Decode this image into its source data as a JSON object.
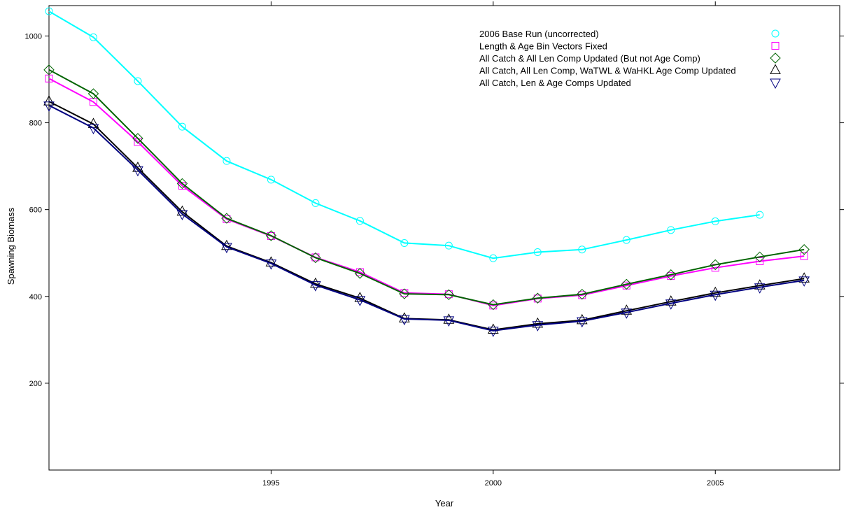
{
  "chart_data": {
    "type": "line",
    "title": "",
    "xlabel": "Year",
    "ylabel": "Spawning Biomass",
    "xlim": [
      1990,
      2007.8
    ],
    "ylim": [
      0,
      1070
    ],
    "x_ticks": [
      1995,
      2000,
      2005
    ],
    "y_ticks": [
      200,
      400,
      600,
      800,
      1000
    ],
    "grid": false,
    "legend_position": "top-right",
    "series": [
      {
        "name": "2006 Base Run (uncorrected)",
        "color": "#00ffff",
        "marker": "circle",
        "x": [
          1990,
          1991,
          1992,
          1993,
          1994,
          1995,
          1996,
          1997,
          1998,
          1999,
          2000,
          2001,
          2002,
          2003,
          2004,
          2005,
          2006
        ],
        "values": [
          1057,
          997,
          896,
          791,
          712,
          669,
          615,
          574,
          523,
          517,
          488,
          502,
          508,
          530,
          553,
          573,
          588
        ]
      },
      {
        "name": "Length & Age Bin Vectors Fixed",
        "color": "#ff00ff",
        "marker": "square",
        "x": [
          1990,
          1991,
          1992,
          1993,
          1994,
          1995,
          1996,
          1997,
          1998,
          1999,
          2000,
          2001,
          2002,
          2003,
          2004,
          2005,
          2006,
          2007
        ],
        "values": [
          902,
          848,
          756,
          655,
          578,
          539,
          490,
          456,
          408,
          405,
          379,
          395,
          403,
          425,
          447,
          466,
          481,
          493
        ]
      },
      {
        "name": "All Catch & All Len Comp Updated (But not Age Comp)",
        "color": "#006400",
        "marker": "diamond",
        "x": [
          1990,
          1991,
          1992,
          1993,
          1994,
          1995,
          1996,
          1997,
          1998,
          1999,
          2000,
          2001,
          2002,
          2003,
          2004,
          2005,
          2006,
          2007
        ],
        "values": [
          922,
          867,
          764,
          660,
          580,
          540,
          489,
          453,
          406,
          404,
          381,
          396,
          405,
          428,
          450,
          473,
          491,
          508
        ]
      },
      {
        "name": "All Catch, All Len Comp, WaTWL & WaHKL Age Comp Updated",
        "color": "#000000",
        "marker": "triangle-up",
        "x": [
          1990,
          1991,
          1992,
          1993,
          1994,
          1995,
          1996,
          1997,
          1998,
          1999,
          2000,
          2001,
          2002,
          2003,
          2004,
          2005,
          2006,
          2007
        ],
        "values": [
          849,
          797,
          696,
          595,
          516,
          478,
          429,
          396,
          349,
          346,
          323,
          337,
          345,
          367,
          388,
          408,
          425,
          441
        ]
      },
      {
        "name": "All Catch, Len & Age Comps Updated",
        "color": "#000080",
        "marker": "triangle-down",
        "x": [
          1990,
          1991,
          1992,
          1993,
          1994,
          1995,
          1996,
          1997,
          1998,
          1999,
          2000,
          2001,
          2002,
          2003,
          2004,
          2005,
          2006,
          2007
        ],
        "values": [
          840,
          788,
          691,
          590,
          514,
          476,
          426,
          392,
          348,
          345,
          321,
          334,
          343,
          363,
          384,
          404,
          421,
          437
        ]
      }
    ]
  }
}
